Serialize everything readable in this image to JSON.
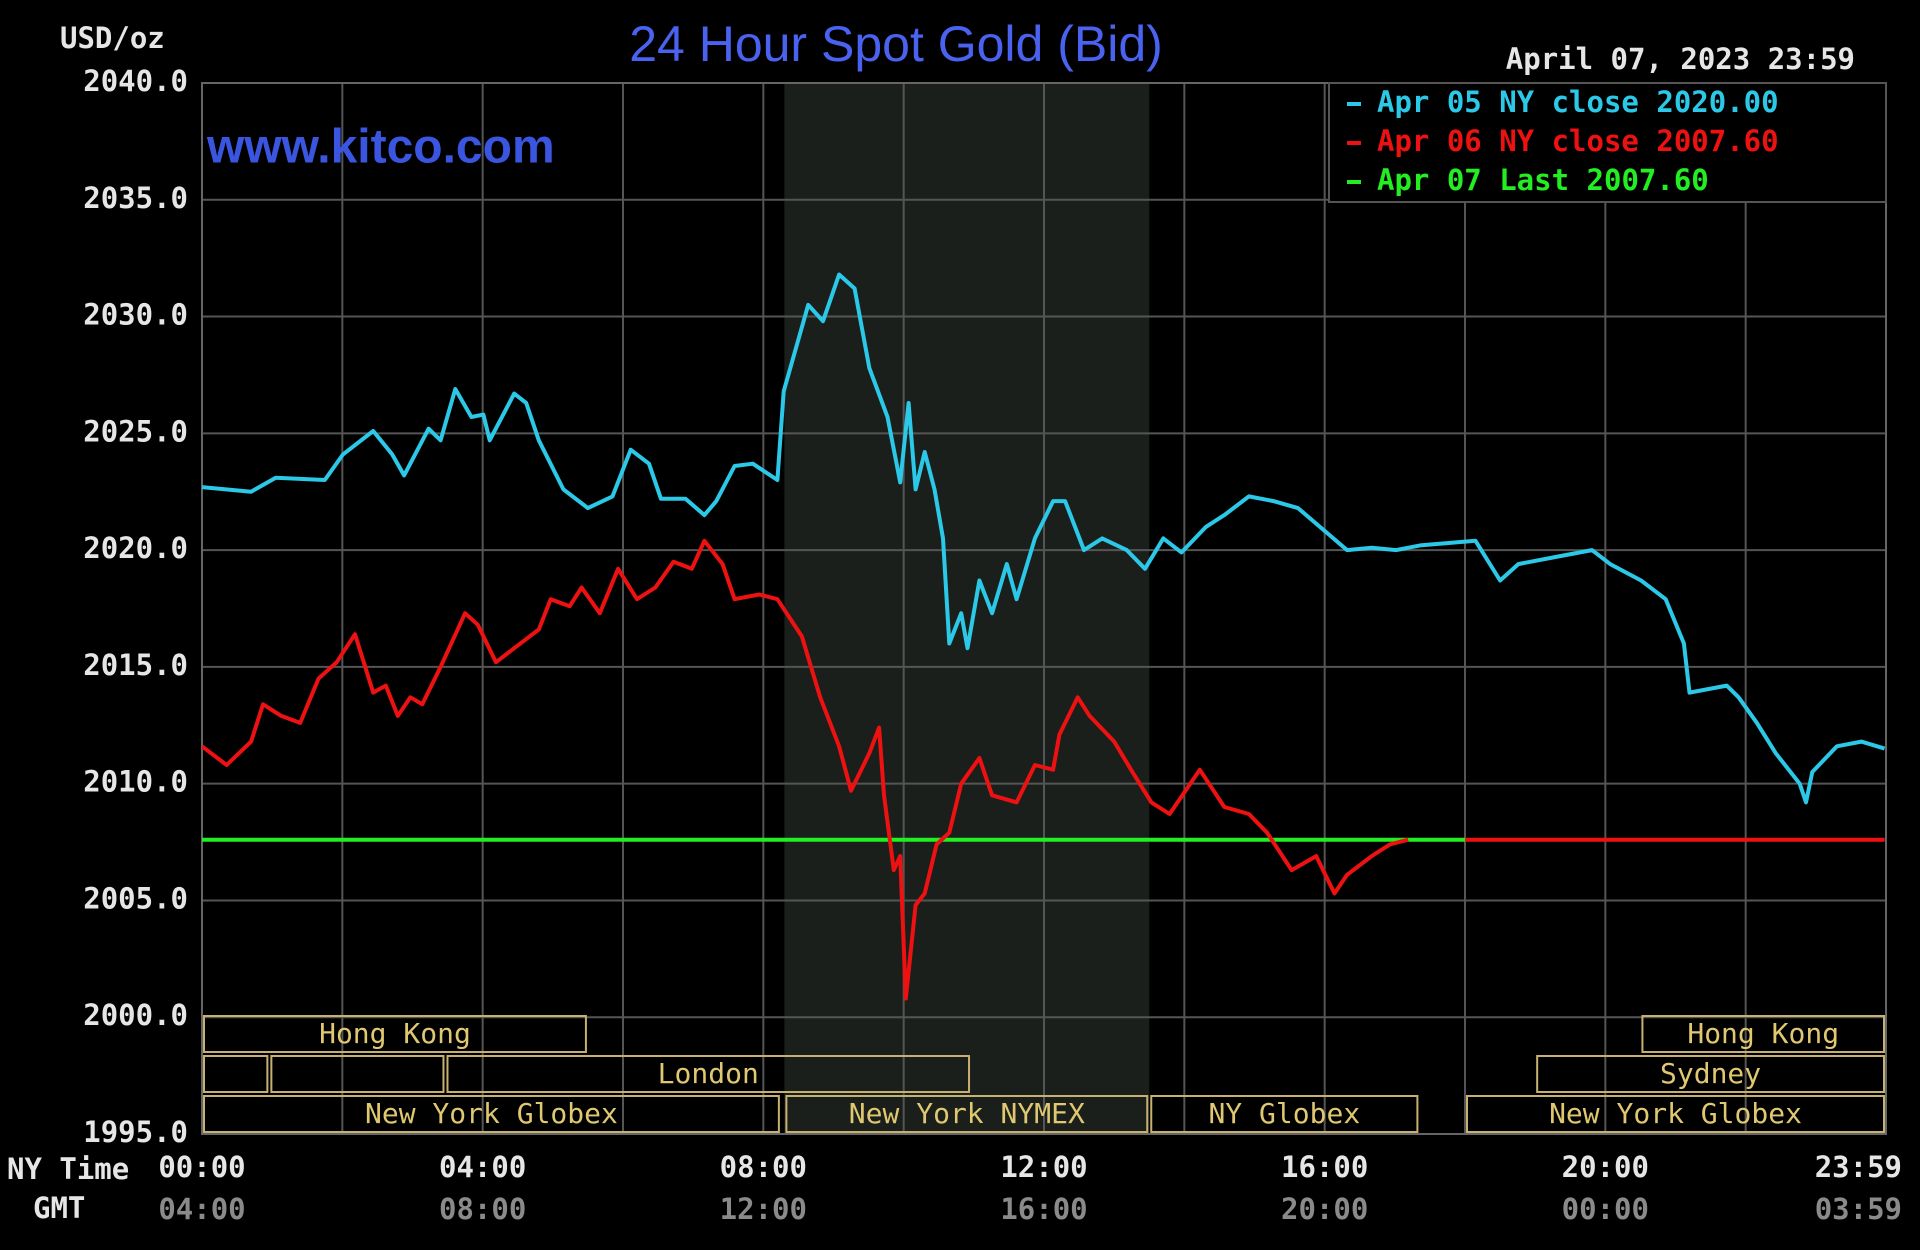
{
  "chart_data": {
    "type": "line",
    "title": "24 Hour Spot Gold (Bid)",
    "y_unit": "USD/oz",
    "timestamp": "April 07, 2023 23:59",
    "watermark": "www.kitco.com",
    "x_axis_label": "NY Time",
    "x2_axis_label": "GMT",
    "xlim": [
      0,
      24
    ],
    "ylim": [
      1995,
      2040
    ],
    "yticks": [
      {
        "value": 1995,
        "label": "1995.0"
      },
      {
        "value": 2000,
        "label": "2000.0"
      },
      {
        "value": 2005,
        "label": "2005.0"
      },
      {
        "value": 2010,
        "label": "2010.0"
      },
      {
        "value": 2015,
        "label": "2015.0"
      },
      {
        "value": 2020,
        "label": "2020.0"
      },
      {
        "value": 2025,
        "label": "2025.0"
      },
      {
        "value": 2030,
        "label": "2030.0"
      },
      {
        "value": 2035,
        "label": "2035.0"
      },
      {
        "value": 2040,
        "label": "2040.0"
      }
    ],
    "xticks": [
      {
        "value": 0,
        "label": "00:00"
      },
      {
        "value": 4,
        "label": "04:00"
      },
      {
        "value": 8,
        "label": "08:00"
      },
      {
        "value": 12,
        "label": "12:00"
      },
      {
        "value": 16,
        "label": "16:00"
      },
      {
        "value": 20,
        "label": "20:00"
      },
      {
        "value": 23.98,
        "label": "23:59"
      }
    ],
    "x2ticks": [
      {
        "value": 0,
        "label": "04:00"
      },
      {
        "value": 4,
        "label": "08:00"
      },
      {
        "value": 8,
        "label": "12:00"
      },
      {
        "value": 12,
        "label": "16:00"
      },
      {
        "value": 16,
        "label": "20:00"
      },
      {
        "value": 20,
        "label": "00:00"
      },
      {
        "value": 23.98,
        "label": "03:59"
      }
    ],
    "xgrid": [
      0,
      2,
      4,
      6,
      8,
      10,
      12,
      14,
      16,
      18,
      20,
      22,
      24
    ],
    "grid": true,
    "shade": [
      8.3,
      13.5
    ],
    "legend": "upper right",
    "series": [
      {
        "name": "Apr 07 Last",
        "color": "#22ee22",
        "legend_value": {
          "value": 2007.6,
          "label": "2007.60"
        },
        "x": [
          0,
          18
        ],
        "values": [
          2007.6,
          2007.6
        ]
      },
      {
        "name": "Apr 06 NY close",
        "color": "#ee1111",
        "legend_value": {
          "value": 2007.6,
          "label": "2007.60"
        },
        "x": [
          0,
          0.35,
          0.7,
          0.87,
          1.13,
          1.4,
          1.66,
          1.92,
          2.18,
          2.44,
          2.62,
          2.79,
          2.97,
          3.14,
          3.4,
          3.75,
          3.93,
          4.19,
          4.45,
          4.8,
          4.97,
          5.24,
          5.41,
          5.67,
          5.93,
          6.2,
          6.46,
          6.72,
          6.98,
          7.16,
          7.42,
          7.59,
          7.94,
          8.2,
          8.55,
          8.81,
          9.08,
          9.25,
          9.51,
          9.65,
          9.72,
          9.86,
          9.95,
          10.03,
          10.17,
          10.3,
          10.47,
          10.65,
          10.82,
          11.08,
          11.26,
          11.61,
          11.87,
          12.13,
          12.22,
          12.48,
          12.65,
          13.0,
          13.26,
          13.53,
          13.79,
          14.22,
          14.57,
          14.92,
          15.18,
          15.53,
          15.88,
          16.14,
          16.32,
          16.67,
          16.93,
          17.19,
          17.6,
          18.0,
          23.98
        ],
        "values": [
          2011.6,
          2010.8,
          2011.8,
          2013.4,
          2012.9,
          2012.6,
          2014.5,
          2015.2,
          2016.4,
          2013.9,
          2014.2,
          2012.9,
          2013.7,
          2013.4,
          2015.0,
          2017.3,
          2016.8,
          2015.2,
          2015.8,
          2016.6,
          2017.9,
          2017.6,
          2018.4,
          2017.3,
          2019.2,
          2017.9,
          2018.4,
          2019.5,
          2019.2,
          2020.4,
          2019.4,
          2017.9,
          2018.1,
          2017.9,
          2016.3,
          2013.7,
          2011.6,
          2009.7,
          2011.3,
          2012.4,
          2009.5,
          2006.3,
          2006.9,
          2000.8,
          2004.8,
          2005.3,
          2007.4,
          2007.9,
          2010.0,
          2011.1,
          2009.5,
          2009.2,
          2010.8,
          2010.6,
          2012.1,
          2013.7,
          2012.9,
          2011.8,
          2010.5,
          2009.2,
          2008.7,
          2010.6,
          2009.0,
          2008.7,
          2007.9,
          2006.3,
          2006.9,
          2005.3,
          2006.1,
          2006.9,
          2007.4,
          2007.6,
          null,
          2007.6,
          2007.6
        ]
      },
      {
        "name": "Apr 05 NY close",
        "color": "#2bc8e8",
        "legend_value": {
          "value": 2020,
          "label": "2020.00"
        },
        "x": [
          0,
          0.7,
          1.05,
          1.75,
          2.01,
          2.44,
          2.71,
          2.88,
          3.23,
          3.4,
          3.61,
          3.84,
          4.01,
          4.1,
          4.45,
          4.62,
          4.8,
          5.15,
          5.5,
          5.85,
          6.11,
          6.37,
          6.54,
          6.89,
          7.16,
          7.33,
          7.59,
          7.85,
          8.2,
          8.29,
          8.64,
          8.85,
          9.08,
          9.3,
          9.51,
          9.77,
          9.95,
          10.07,
          10.17,
          10.3,
          10.44,
          10.56,
          10.65,
          10.82,
          10.91,
          11.08,
          11.26,
          11.47,
          11.61,
          11.87,
          12.13,
          12.3,
          12.57,
          12.83,
          13.18,
          13.44,
          13.7,
          13.96,
          14.31,
          14.57,
          14.92,
          15.27,
          15.62,
          15.97,
          16.32,
          16.67,
          17.02,
          17.36,
          18.15,
          18.5,
          18.76,
          19.28,
          19.81,
          20.07,
          20.51,
          20.86,
          21.12,
          21.2,
          21.73,
          21.9,
          22.16,
          22.43,
          22.77,
          22.86,
          22.95,
          23.3,
          23.65,
          23.98
        ],
        "values": [
          2022.7,
          2022.5,
          2023.1,
          2023.0,
          2024.1,
          2025.1,
          2024.1,
          2023.2,
          2025.2,
          2024.7,
          2026.9,
          2025.7,
          2025.8,
          2024.7,
          2026.7,
          2026.3,
          2024.7,
          2022.6,
          2021.8,
          2022.3,
          2024.3,
          2023.7,
          2022.2,
          2022.2,
          2021.5,
          2022.1,
          2023.6,
          2023.7,
          2023.0,
          2026.8,
          2030.5,
          2029.8,
          2031.8,
          2031.2,
          2027.8,
          2025.7,
          2022.9,
          2026.3,
          2022.6,
          2024.2,
          2022.6,
          2020.5,
          2016.0,
          2017.3,
          2015.8,
          2018.7,
          2017.3,
          2019.4,
          2017.9,
          2020.5,
          2022.1,
          2022.1,
          2020.0,
          2020.5,
          2020.0,
          2019.2,
          2020.5,
          2019.9,
          2021.0,
          2021.5,
          2022.3,
          2022.1,
          2021.8,
          2020.9,
          2020.0,
          2020.1,
          2020.0,
          2020.2,
          2020.4,
          2018.7,
          2019.4,
          2019.7,
          2020.0,
          2019.4,
          2018.7,
          2017.9,
          2016.0,
          2013.9,
          2014.2,
          2013.7,
          2012.6,
          2011.3,
          2010.0,
          2009.2,
          2010.5,
          2011.6,
          2011.8,
          2011.5
        ]
      }
    ],
    "sessions": [
      {
        "label": "Hong Kong",
        "row": 0,
        "start": 0,
        "end": 5.5
      },
      {
        "label": "Hong Kong",
        "row": 0,
        "start": 20.5,
        "end": 24
      },
      {
        "label": null,
        "row": 1,
        "start": 0,
        "end": 0.96
      },
      {
        "label": null,
        "row": 1,
        "start": 0.96,
        "end": 3.47
      },
      {
        "label": "London",
        "row": 1,
        "start": 3.47,
        "end": 10.96
      },
      {
        "label": "Sydney",
        "row": 1,
        "start": 19,
        "end": 24
      },
      {
        "label": "New York Globex",
        "row": 2,
        "start": 0,
        "end": 8.25
      },
      {
        "label": "New York NYMEX",
        "row": 2,
        "start": 8.3,
        "end": 13.5
      },
      {
        "label": "NY Globex",
        "row": 2,
        "start": 13.5,
        "end": 17.35
      },
      {
        "label": "New York Globex",
        "row": 2,
        "start": 18,
        "end": 24
      }
    ]
  }
}
